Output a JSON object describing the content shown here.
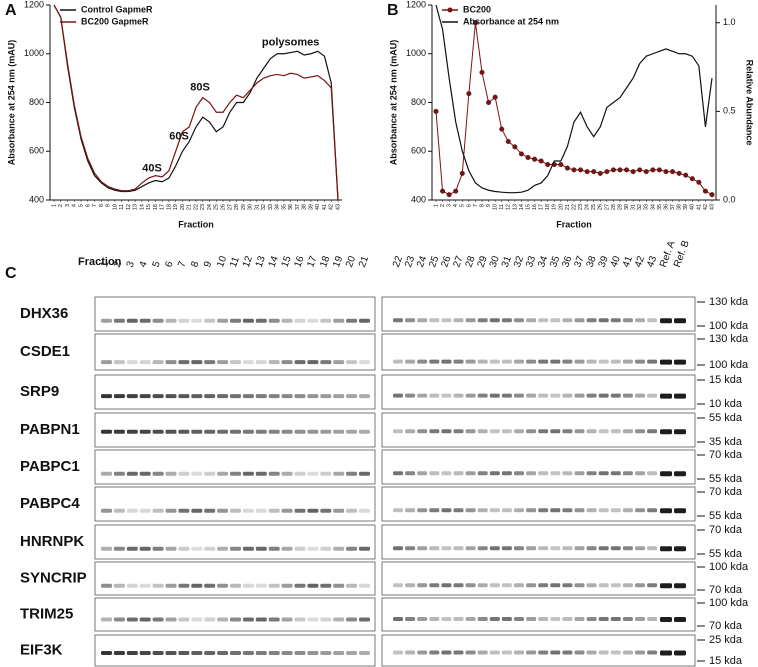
{
  "chart_data": [
    {
      "type": "line",
      "panel": "A",
      "ylabel": "Absorbance at 254 nm (mAU)",
      "xlabel": "Fraction",
      "categories": [
        "1",
        "2",
        "3",
        "4",
        "5",
        "6",
        "7",
        "8",
        "9",
        "10",
        "11",
        "12",
        "13",
        "14",
        "15",
        "16",
        "17",
        "18",
        "19",
        "20",
        "21",
        "22",
        "23",
        "24",
        "25",
        "26",
        "27",
        "28",
        "29",
        "30",
        "31",
        "32",
        "33",
        "34",
        "35",
        "36",
        "37",
        "38",
        "39",
        "40",
        "41",
        "42",
        "43"
      ],
      "ylim": [
        400,
        1200
      ],
      "yticks": [
        400,
        600,
        800,
        1000,
        1200
      ],
      "legend": "upper left",
      "annotations": [
        "40S",
        "60S",
        "80S",
        "polysomes"
      ],
      "series": [
        {
          "name": "Control GapmeR",
          "color": "#111111",
          "values": [
            1200,
            1150,
            950,
            780,
            650,
            560,
            500,
            470,
            450,
            440,
            435,
            435,
            440,
            455,
            470,
            480,
            475,
            490,
            540,
            600,
            640,
            700,
            740,
            720,
            680,
            700,
            760,
            800,
            800,
            840,
            900,
            940,
            980,
            1000,
            1000,
            1005,
            1010,
            995,
            1000,
            1010,
            990,
            880,
            400
          ]
        },
        {
          "name": "BC200 GapmeR",
          "color": "#7a1414",
          "values": [
            1200,
            1150,
            960,
            790,
            660,
            570,
            510,
            475,
            455,
            445,
            438,
            438,
            445,
            470,
            490,
            500,
            495,
            520,
            600,
            680,
            700,
            780,
            820,
            800,
            760,
            760,
            800,
            830,
            820,
            850,
            880,
            900,
            910,
            915,
            910,
            920,
            915,
            900,
            905,
            910,
            890,
            860,
            400
          ]
        }
      ]
    },
    {
      "type": "line",
      "panel": "B",
      "ylabel": "Absorbance at 254 nm (mAU)",
      "y2label": "Relative Abundance",
      "xlabel": "Fraction",
      "categories": [
        "1",
        "2",
        "3",
        "4",
        "5",
        "6",
        "7",
        "8",
        "9",
        "10",
        "11",
        "12",
        "13",
        "14",
        "15",
        "16",
        "17",
        "18",
        "19",
        "20",
        "21",
        "22",
        "23",
        "24",
        "25",
        "26",
        "27",
        "28",
        "29",
        "30",
        "31",
        "32",
        "33",
        "34",
        "35",
        "36",
        "37",
        "38",
        "39",
        "40",
        "41",
        "42",
        "43"
      ],
      "ylim": [
        400,
        1200
      ],
      "yticks": [
        400,
        600,
        800,
        1000,
        1200
      ],
      "y2lim": [
        0,
        1.1
      ],
      "y2ticks": [
        {
          "value": 0,
          "label": "0.0"
        },
        {
          "value": 0.5,
          "label": "0.5"
        },
        {
          "value": 1,
          "label": "1.0"
        }
      ],
      "legend": "upper left",
      "series": [
        {
          "name": "BC200",
          "color": "#7a1414",
          "axis": "y2",
          "markers": true,
          "values": [
            0.5,
            0.05,
            0.03,
            0.05,
            0.15,
            0.6,
            1.0,
            0.72,
            0.55,
            0.58,
            0.4,
            0.33,
            0.3,
            0.26,
            0.24,
            0.23,
            0.22,
            0.2,
            0.2,
            0.2,
            0.18,
            0.17,
            0.17,
            0.16,
            0.16,
            0.15,
            0.16,
            0.17,
            0.17,
            0.17,
            0.16,
            0.17,
            0.16,
            0.17,
            0.17,
            0.16,
            0.16,
            0.15,
            0.14,
            0.12,
            0.1,
            0.05,
            0.03
          ]
        },
        {
          "name": "Absorbance at 254 nm",
          "color": "#111111",
          "values": [
            1200,
            1100,
            900,
            720,
            600,
            520,
            470,
            450,
            440,
            435,
            432,
            430,
            430,
            432,
            440,
            460,
            470,
            500,
            560,
            560,
            620,
            720,
            760,
            700,
            660,
            700,
            780,
            800,
            820,
            860,
            900,
            960,
            990,
            1000,
            1010,
            1020,
            1010,
            1000,
            1000,
            990,
            950,
            700,
            900
          ]
        }
      ]
    }
  ],
  "blot": {
    "panel": "C",
    "fraction_label": "Fraction",
    "lanes_left": [
      "1",
      "2",
      "3",
      "4",
      "5",
      "6",
      "7",
      "8",
      "9",
      "10",
      "11",
      "12",
      "13",
      "14",
      "15",
      "16",
      "17",
      "18",
      "19",
      "20",
      "21"
    ],
    "lanes_right": [
      "22",
      "23",
      "24",
      "25",
      "26",
      "27",
      "28",
      "29",
      "30",
      "31",
      "32",
      "33",
      "34",
      "35",
      "36",
      "37",
      "38",
      "39",
      "40",
      "41",
      "42",
      "43",
      "Ref. A",
      "Ref. B"
    ],
    "rows": [
      {
        "name": "DHX36",
        "markers": [
          "130 kda",
          "100 kda"
        ]
      },
      {
        "name": "CSDE1",
        "markers": [
          "130 kda",
          "100 kda"
        ]
      },
      {
        "name": "SRP9",
        "markers": [
          "15 kda",
          "10 kda"
        ]
      },
      {
        "name": "PABPN1",
        "markers": [
          "55 kda",
          "35 kda"
        ]
      },
      {
        "name": "PABPC1",
        "markers": [
          "70 kda",
          "55 kda"
        ]
      },
      {
        "name": "PABPC4",
        "markers": [
          "70 kda",
          "55 kda"
        ]
      },
      {
        "name": "HNRNPK",
        "markers": [
          "70 kda",
          "55 kda"
        ]
      },
      {
        "name": "SYNCRIP",
        "markers": [
          "100 kda",
          "70 kda"
        ]
      },
      {
        "name": "TRIM25",
        "markers": [
          "100 kda",
          "70 kda"
        ]
      },
      {
        "name": "EIF3K",
        "markers": [
          "25 kda",
          "15 kda"
        ]
      }
    ]
  }
}
